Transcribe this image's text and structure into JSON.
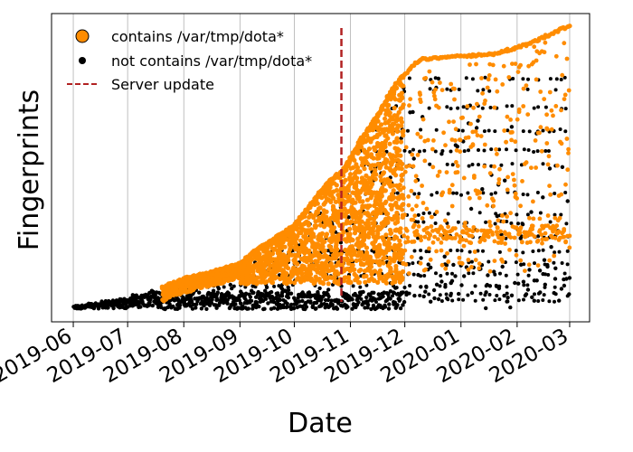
{
  "chart_data": {
    "type": "scatter",
    "title": "",
    "xlabel": "Date",
    "ylabel": "Fingerprints",
    "x_ticks": [
      "2019-06",
      "2019-07",
      "2019-08",
      "2019-09",
      "2019-10",
      "2019-11",
      "2019-12",
      "2020-01",
      "2020-02",
      "2020-03"
    ],
    "xlim": [
      "2019-05-20",
      "2020-03-12"
    ],
    "y_ticks_shown": false,
    "grid": "vertical",
    "legend_position": "top-left",
    "colors": {
      "contains": "#ff8c00",
      "not_contains": "#000000",
      "server_update": "#b22222"
    },
    "server_update": {
      "label": "Server update",
      "date": "2019-10-27",
      "style": "dashed"
    },
    "series": [
      {
        "name": "contains /var/tmp/dota*",
        "marker": "circle-orange",
        "upper_envelope": [
          [
            "2019-07-20",
            0.08
          ],
          [
            "2019-08-01",
            0.11
          ],
          [
            "2019-08-15",
            0.13
          ],
          [
            "2019-08-31",
            0.16
          ],
          [
            "2019-09-10",
            0.21
          ],
          [
            "2019-09-20",
            0.25
          ],
          [
            "2019-09-30",
            0.29
          ],
          [
            "2019-10-10",
            0.37
          ],
          [
            "2019-10-20",
            0.45
          ],
          [
            "2019-10-27",
            0.48
          ],
          [
            "2019-11-05",
            0.58
          ],
          [
            "2019-11-15",
            0.67
          ],
          [
            "2019-11-25",
            0.78
          ],
          [
            "2019-12-05",
            0.85
          ],
          [
            "2019-12-10",
            0.87
          ],
          [
            "2019-12-31",
            0.88
          ],
          [
            "2020-01-20",
            0.89
          ],
          [
            "2020-02-05",
            0.92
          ],
          [
            "2020-02-20",
            0.96
          ],
          [
            "2020-03-01",
            0.99
          ]
        ]
      },
      {
        "name": "not contains /var/tmp/dota*",
        "marker": "dot-black",
        "date_range": [
          "2019-06-01",
          "2020-03-01"
        ],
        "typical_band": [
          0.0,
          0.3
        ]
      }
    ]
  }
}
